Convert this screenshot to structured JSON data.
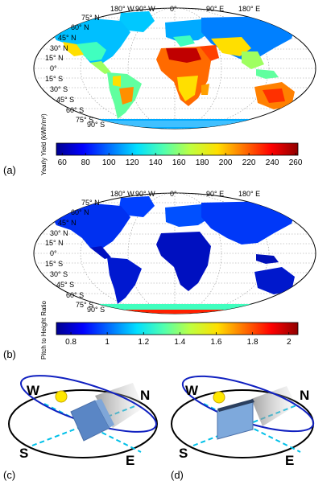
{
  "colormap": [
    "#00008f",
    "#0000ff",
    "#0070ff",
    "#00dfff",
    "#50ffaf",
    "#bfff40",
    "#ffdf00",
    "#ff7000",
    "#ff0000",
    "#8f0000"
  ],
  "panels": [
    {
      "label": "(a)",
      "colorbar_label": "Yearly Yield (kWh/m²)",
      "colorbar_ticks": [
        "60",
        "80",
        "100",
        "120",
        "140",
        "160",
        "180",
        "200",
        "220",
        "240",
        "260"
      ],
      "colorbar_range": [
        55,
        262
      ],
      "theme": "yield",
      "top_lon_labels": [
        "180° W",
        "90° W",
        "0°",
        "90° E",
        "180° E"
      ],
      "lat_labels": [
        "75° N",
        "60° N",
        "45° N",
        "30° N",
        "15° N",
        "0°",
        "15° S",
        "30° S",
        "45° S",
        "60° S",
        "75° S",
        "90° S"
      ]
    },
    {
      "label": "(b)",
      "colorbar_label": "Pitch to Height Ratio",
      "colorbar_ticks": [
        "0.8",
        "1",
        "1.2",
        "1.4",
        "1.6",
        "1.8",
        "2"
      ],
      "colorbar_range": [
        0.72,
        2.05
      ],
      "theme": "ratio",
      "top_lon_labels": [
        "180° W",
        "90° W",
        "0°",
        "90° E",
        "180° E"
      ],
      "lat_labels": [
        "75° N",
        "60° N",
        "45° N",
        "30° N",
        "15° N",
        "0°",
        "15° S",
        "30° S",
        "45° S",
        "60° S",
        "75° S",
        "90° S"
      ]
    }
  ],
  "diagrams": [
    {
      "label": "(c)",
      "directions": {
        "w": "W",
        "n": "N",
        "s": "S",
        "e": "E"
      }
    },
    {
      "label": "(d)",
      "directions": {
        "w": "W",
        "n": "N",
        "s": "S",
        "e": "E"
      }
    }
  ]
}
